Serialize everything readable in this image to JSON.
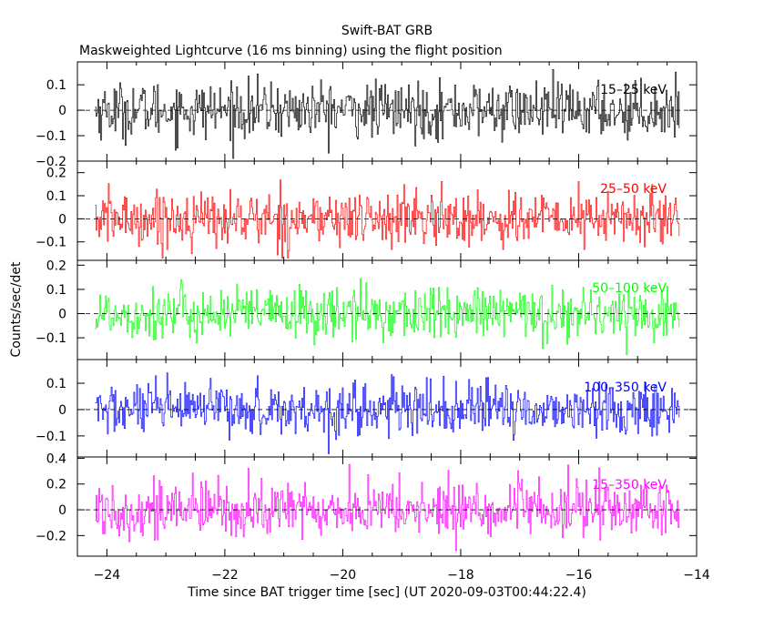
{
  "title": "Swift-BAT GRB",
  "subtitle": "Maskweighted Lightcurve (16 ms binning) using the flight position",
  "xlabel": "Time since BAT trigger time [sec] (UT 2020-09-03T00:44:22.4)",
  "ylabel": "Counts/sec/det",
  "chart_data": [
    {
      "type": "line",
      "series": [
        {
          "name": "15-25 keV",
          "color": "#000000",
          "x_range": [
            -24.2,
            -14.3
          ],
          "y_range": [
            -0.19,
            0.16
          ],
          "noise_sigma": 0.055
        }
      ],
      "xlim": [
        -24.5,
        -14.0
      ],
      "ylim": [
        -0.2,
        0.19
      ],
      "yticks": [
        -0.2,
        -0.1,
        0,
        0.1
      ],
      "yticklabels": [
        "−0.2",
        "−0.1",
        "0",
        "0.1"
      ]
    },
    {
      "type": "line",
      "series": [
        {
          "name": "25-50 keV",
          "color": "#ff0000",
          "x_range": [
            -24.2,
            -14.3
          ],
          "y_range": [
            -0.17,
            0.22
          ],
          "noise_sigma": 0.06
        }
      ],
      "xlim": [
        -24.5,
        -14.0
      ],
      "ylim": [
        -0.18,
        0.25
      ],
      "yticks": [
        -0.1,
        0,
        0.1,
        0.2
      ],
      "yticklabels": [
        "−0.1",
        "0",
        "0.1",
        "0.2"
      ]
    },
    {
      "type": "line",
      "series": [
        {
          "name": "50-100 keV",
          "color": "#00ff00",
          "x_range": [
            -24.2,
            -14.3
          ],
          "y_range": [
            -0.17,
            0.2
          ],
          "noise_sigma": 0.055
        }
      ],
      "xlim": [
        -24.5,
        -14.0
      ],
      "ylim": [
        -0.19,
        0.22
      ],
      "yticks": [
        -0.1,
        0,
        0.1,
        0.2
      ],
      "yticklabels": [
        "−0.1",
        "0",
        "0.1",
        "0.2"
      ]
    },
    {
      "type": "line",
      "series": [
        {
          "name": "100-350 keV",
          "color": "#0000ff",
          "x_range": [
            -24.2,
            -14.3
          ],
          "y_range": [
            -0.17,
            0.18
          ],
          "noise_sigma": 0.05
        }
      ],
      "xlim": [
        -24.5,
        -14.0
      ],
      "ylim": [
        -0.18,
        0.19
      ],
      "yticks": [
        -0.1,
        0,
        0.1
      ],
      "yticklabels": [
        "−0.1",
        "0",
        "0.1"
      ]
    },
    {
      "type": "line",
      "series": [
        {
          "name": "15-350 keV",
          "color": "#ff00ff",
          "x_range": [
            -24.2,
            -14.3
          ],
          "y_range": [
            -0.34,
            0.4
          ],
          "noise_sigma": 0.11
        }
      ],
      "xlim": [
        -24.5,
        -14.0
      ],
      "ylim": [
        -0.36,
        0.41
      ],
      "yticks": [
        -0.2,
        0,
        0.2,
        0.4
      ],
      "yticklabels": [
        "−0.2",
        "0",
        "0.2",
        "0.4"
      ]
    }
  ],
  "xticks": [
    -24,
    -22,
    -20,
    -18,
    -16,
    -14
  ],
  "xticklabels": [
    "−24",
    "−22",
    "−20",
    "−18",
    "−16",
    "−14"
  ]
}
